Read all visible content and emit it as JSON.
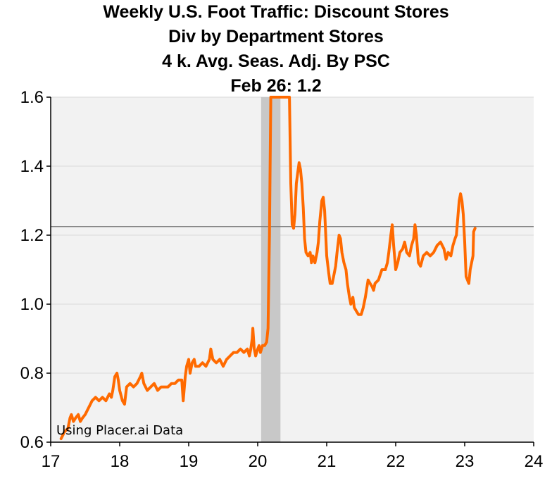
{
  "chart_data": {
    "type": "line",
    "title": [
      "Weekly U.S. Foot Traffic: Discount Stores",
      "Div by Department Stores",
      "4 k. Avg.   Seas. Adj. By PSC",
      "Feb 26: 1.2"
    ],
    "xlabel": "",
    "ylabel": "",
    "xlim": [
      17,
      24
    ],
    "ylim": [
      0.6,
      1.6
    ],
    "x_ticks": [
      "17",
      "18",
      "19",
      "20",
      "21",
      "22",
      "23",
      "24"
    ],
    "y_ticks": [
      "0.6",
      "0.8",
      "1.0",
      "1.2",
      "1.4",
      "1.6"
    ],
    "reference_line": 1.225,
    "shaded_region": [
      20.05,
      20.33
    ],
    "annotation": "Using Placer.ai Data",
    "grid": true,
    "colors": {
      "series": "#ff6a00",
      "plot_bg": "#f2f2f2",
      "grid": "#d9d9d9",
      "shade": "#c8c8c8",
      "ref_line": "#808080"
    },
    "series": [
      {
        "name": "",
        "points": [
          [
            17.15,
            0.61
          ],
          [
            17.2,
            0.63
          ],
          [
            17.25,
            0.64
          ],
          [
            17.28,
            0.67
          ],
          [
            17.3,
            0.68
          ],
          [
            17.33,
            0.66
          ],
          [
            17.36,
            0.67
          ],
          [
            17.4,
            0.68
          ],
          [
            17.43,
            0.66
          ],
          [
            17.46,
            0.67
          ],
          [
            17.5,
            0.68
          ],
          [
            17.55,
            0.7
          ],
          [
            17.6,
            0.72
          ],
          [
            17.65,
            0.73
          ],
          [
            17.7,
            0.72
          ],
          [
            17.75,
            0.73
          ],
          [
            17.8,
            0.72
          ],
          [
            17.85,
            0.74
          ],
          [
            17.88,
            0.73
          ],
          [
            17.9,
            0.75
          ],
          [
            17.93,
            0.79
          ],
          [
            17.96,
            0.8
          ],
          [
            17.98,
            0.78
          ],
          [
            18.0,
            0.75
          ],
          [
            18.04,
            0.72
          ],
          [
            18.07,
            0.71
          ],
          [
            18.1,
            0.76
          ],
          [
            18.15,
            0.77
          ],
          [
            18.2,
            0.76
          ],
          [
            18.25,
            0.77
          ],
          [
            18.3,
            0.79
          ],
          [
            18.32,
            0.8
          ],
          [
            18.35,
            0.77
          ],
          [
            18.4,
            0.75
          ],
          [
            18.45,
            0.76
          ],
          [
            18.5,
            0.77
          ],
          [
            18.55,
            0.75
          ],
          [
            18.6,
            0.76
          ],
          [
            18.7,
            0.76
          ],
          [
            18.75,
            0.77
          ],
          [
            18.8,
            0.77
          ],
          [
            18.85,
            0.78
          ],
          [
            18.9,
            0.78
          ],
          [
            18.92,
            0.72
          ],
          [
            18.95,
            0.79
          ],
          [
            18.97,
            0.82
          ],
          [
            19.0,
            0.84
          ],
          [
            19.02,
            0.8
          ],
          [
            19.05,
            0.83
          ],
          [
            19.08,
            0.84
          ],
          [
            19.1,
            0.82
          ],
          [
            19.15,
            0.82
          ],
          [
            19.2,
            0.83
          ],
          [
            19.25,
            0.82
          ],
          [
            19.3,
            0.84
          ],
          [
            19.32,
            0.87
          ],
          [
            19.35,
            0.84
          ],
          [
            19.4,
            0.83
          ],
          [
            19.45,
            0.84
          ],
          [
            19.5,
            0.82
          ],
          [
            19.55,
            0.84
          ],
          [
            19.6,
            0.85
          ],
          [
            19.65,
            0.86
          ],
          [
            19.7,
            0.86
          ],
          [
            19.75,
            0.87
          ],
          [
            19.8,
            0.86
          ],
          [
            19.85,
            0.87
          ],
          [
            19.88,
            0.85
          ],
          [
            19.9,
            0.87
          ],
          [
            19.92,
            0.9
          ],
          [
            19.93,
            0.93
          ],
          [
            19.95,
            0.87
          ],
          [
            19.97,
            0.85
          ],
          [
            20.0,
            0.87
          ],
          [
            20.02,
            0.88
          ],
          [
            20.04,
            0.86
          ],
          [
            20.07,
            0.88
          ],
          [
            20.1,
            0.88
          ],
          [
            20.13,
            0.89
          ],
          [
            20.15,
            0.93
          ],
          [
            20.17,
            1.2
          ],
          [
            20.19,
            1.6
          ],
          [
            20.46,
            1.6
          ],
          [
            20.48,
            1.35
          ],
          [
            20.5,
            1.23
          ],
          [
            20.52,
            1.22
          ],
          [
            20.54,
            1.26
          ],
          [
            20.56,
            1.35
          ],
          [
            20.58,
            1.38
          ],
          [
            20.6,
            1.41
          ],
          [
            20.62,
            1.39
          ],
          [
            20.64,
            1.35
          ],
          [
            20.66,
            1.28
          ],
          [
            20.68,
            1.19
          ],
          [
            20.7,
            1.15
          ],
          [
            20.73,
            1.14
          ],
          [
            20.76,
            1.15
          ],
          [
            20.78,
            1.12
          ],
          [
            20.8,
            1.14
          ],
          [
            20.83,
            1.12
          ],
          [
            20.86,
            1.15
          ],
          [
            20.88,
            1.18
          ],
          [
            20.9,
            1.24
          ],
          [
            20.93,
            1.3
          ],
          [
            20.95,
            1.31
          ],
          [
            20.97,
            1.27
          ],
          [
            21.0,
            1.14
          ],
          [
            21.03,
            1.09
          ],
          [
            21.05,
            1.06
          ],
          [
            21.08,
            1.06
          ],
          [
            21.1,
            1.08
          ],
          [
            21.13,
            1.11
          ],
          [
            21.15,
            1.15
          ],
          [
            21.18,
            1.2
          ],
          [
            21.2,
            1.19
          ],
          [
            21.22,
            1.15
          ],
          [
            21.25,
            1.12
          ],
          [
            21.28,
            1.1
          ],
          [
            21.3,
            1.06
          ],
          [
            21.33,
            1.02
          ],
          [
            21.35,
            1.0
          ],
          [
            21.38,
            1.02
          ],
          [
            21.4,
            0.99
          ],
          [
            21.43,
            0.98
          ],
          [
            21.46,
            0.97
          ],
          [
            21.5,
            0.97
          ],
          [
            21.53,
            0.99
          ],
          [
            21.56,
            1.02
          ],
          [
            21.6,
            1.07
          ],
          [
            21.63,
            1.06
          ],
          [
            21.66,
            1.05
          ],
          [
            21.68,
            1.04
          ],
          [
            21.7,
            1.06
          ],
          [
            21.75,
            1.07
          ],
          [
            21.8,
            1.1
          ],
          [
            21.85,
            1.1
          ],
          [
            21.88,
            1.12
          ],
          [
            21.9,
            1.15
          ],
          [
            21.93,
            1.2
          ],
          [
            21.95,
            1.23
          ],
          [
            21.97,
            1.17
          ],
          [
            22.0,
            1.1
          ],
          [
            22.03,
            1.12
          ],
          [
            22.06,
            1.15
          ],
          [
            22.1,
            1.16
          ],
          [
            22.13,
            1.18
          ],
          [
            22.16,
            1.15
          ],
          [
            22.2,
            1.14
          ],
          [
            22.23,
            1.17
          ],
          [
            22.26,
            1.19
          ],
          [
            22.28,
            1.23
          ],
          [
            22.3,
            1.2
          ],
          [
            22.33,
            1.12
          ],
          [
            22.36,
            1.11
          ],
          [
            22.4,
            1.14
          ],
          [
            22.45,
            1.15
          ],
          [
            22.5,
            1.14
          ],
          [
            22.55,
            1.15
          ],
          [
            22.6,
            1.17
          ],
          [
            22.65,
            1.18
          ],
          [
            22.7,
            1.16
          ],
          [
            22.73,
            1.13
          ],
          [
            22.76,
            1.15
          ],
          [
            22.8,
            1.14
          ],
          [
            22.83,
            1.17
          ],
          [
            22.86,
            1.19
          ],
          [
            22.88,
            1.2
          ],
          [
            22.9,
            1.25
          ],
          [
            22.92,
            1.3
          ],
          [
            22.94,
            1.32
          ],
          [
            22.96,
            1.3
          ],
          [
            22.98,
            1.26
          ],
          [
            23.0,
            1.18
          ],
          [
            23.02,
            1.08
          ],
          [
            23.04,
            1.07
          ],
          [
            23.06,
            1.06
          ],
          [
            23.08,
            1.1
          ],
          [
            23.1,
            1.12
          ],
          [
            23.12,
            1.14
          ],
          [
            23.13,
            1.21
          ],
          [
            23.15,
            1.22
          ]
        ]
      }
    ]
  }
}
